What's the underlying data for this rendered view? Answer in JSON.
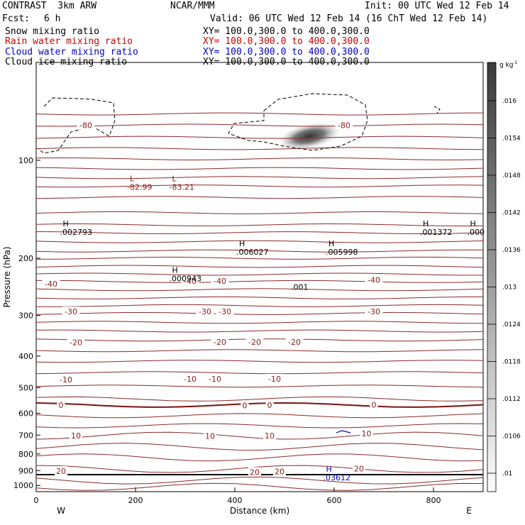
{
  "header": {
    "title_left": "CONTRAST  3km ARW",
    "title_center": "NCAR/MMM",
    "init": "Init: 00 UTC Wed 12 Feb 14",
    "fcst_label": "Fcst:",
    "fcst_value": "6 h",
    "valid": "Valid: 06 UTC Wed 12 Feb 14 (16 ChT Wed 12 Feb 14)",
    "fields": [
      {
        "name": "Snow mixing ratio",
        "xy": "XY= 100.0,300.0 to 400.0,300.0",
        "color": "#000000"
      },
      {
        "name": "Rain water mixing ratio",
        "xy": "XY= 100.0,300.0 to 400.0,300.0",
        "color": "#cc0000"
      },
      {
        "name": "Cloud water mixing ratio",
        "xy": "XY= 100.0,300.0 to 400.0,300.0",
        "color": "#0000cc"
      },
      {
        "name": "Cloud ice mixing ratio",
        "xy": "XY= 100.0,300.0 to 400.0,300.0",
        "color": "#000000"
      }
    ]
  },
  "chart_data": {
    "type": "contour",
    "xlabel": "Distance (km)",
    "ylabel": "Pressure (hPa)",
    "xlim": [
      0,
      900
    ],
    "ylim": [
      1045,
      50
    ],
    "y_scale": "log",
    "x_ticks": [
      0,
      200,
      400,
      600,
      800
    ],
    "y_ticks": [
      100,
      200,
      300,
      400,
      500,
      600,
      700,
      800,
      900,
      1000
    ],
    "direction_left": "W",
    "direction_right": "E",
    "colorbar": {
      "unit": "g kg",
      "unit_exp": "-1",
      "ticks": [
        ".016",
        ".0154",
        ".0148",
        ".0142",
        ".0136",
        ".013",
        ".0124",
        ".0118",
        ".0112",
        ".0106",
        ".01"
      ]
    },
    "temperature_contours": [
      {
        "label": "-80",
        "label_positions": [
          [
            100,
            78
          ],
          [
            620,
            78
          ]
        ]
      },
      {
        "label": "-40",
        "label_positions": [
          [
            30,
            240
          ],
          [
            310,
            235
          ],
          [
            370,
            235
          ],
          [
            680,
            233
          ]
        ]
      },
      {
        "label": "-30",
        "label_positions": [
          [
            70,
            292
          ],
          [
            340,
            292
          ],
          [
            380,
            292
          ],
          [
            680,
            292
          ]
        ]
      },
      {
        "label": "-20",
        "label_positions": [
          [
            80,
            363
          ],
          [
            370,
            362
          ],
          [
            440,
            362
          ],
          [
            520,
            362
          ]
        ]
      },
      {
        "label": "-10",
        "label_positions": [
          [
            60,
            473
          ],
          [
            310,
            470
          ],
          [
            360,
            470
          ],
          [
            480,
            470
          ]
        ]
      },
      {
        "label": "0",
        "label_positions": [
          [
            50,
            566
          ],
          [
            420,
            567
          ],
          [
            470,
            566
          ],
          [
            680,
            564
          ]
        ]
      },
      {
        "label": "10",
        "label_positions": [
          [
            80,
            703
          ],
          [
            350,
            705
          ],
          [
            470,
            703
          ],
          [
            665,
            692
          ]
        ]
      },
      {
        "label": "20",
        "label_positions": [
          [
            50,
            904
          ],
          [
            440,
            910
          ],
          [
            490,
            906
          ],
          [
            650,
            888
          ]
        ]
      }
    ],
    "extrema": [
      {
        "type": "L",
        "value": "-82.99",
        "x": 200,
        "p": 122,
        "color": "#8b1a1a"
      },
      {
        "type": "L",
        "value": "-83.21",
        "x": 285,
        "p": 122,
        "color": "#8b1a1a"
      },
      {
        "type": "H",
        "value": ".002793",
        "x": 65,
        "p": 168,
        "color": "#000000"
      },
      {
        "type": "H",
        "value": ".000943",
        "x": 285,
        "p": 233,
        "color": "#000000"
      },
      {
        "type": "H",
        "value": ".006027",
        "x": 420,
        "p": 193,
        "color": "#000000"
      },
      {
        "type": "H",
        "value": ".005998",
        "x": 600,
        "p": 193,
        "color": "#000000"
      },
      {
        "type": "H",
        "value": ".001372",
        "x": 790,
        "p": 168,
        "color": "#000000"
      },
      {
        "type": "H",
        "value": ".000",
        "x": 885,
        "p": 168,
        "color": "#000000"
      },
      {
        "type": "H",
        "value": ".03612",
        "x": 595,
        "p": 955,
        "color": "#0000cc"
      },
      {
        "type": "label",
        "value": ".001",
        "x": 530,
        "p": 248,
        "color": "#000000"
      }
    ]
  }
}
